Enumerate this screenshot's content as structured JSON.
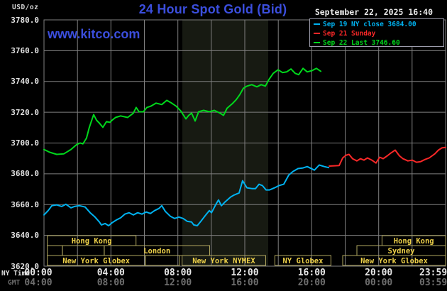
{
  "colors": {
    "background": "#000000",
    "title_blue": "#3b4edd",
    "grid": "#7f7f7f",
    "axis_text": "#e2e2e2",
    "gmt_text": "#6e6e6e",
    "session_border": "#b1a75f",
    "session_text": "#edd049",
    "nymex_band": "#171a12",
    "legend_border": "#9c9cac",
    "cyan": "#00b2f0",
    "red": "#fa2828",
    "green": "#00d81c"
  },
  "header": {
    "unit_label": "USD/oz",
    "title": "24 Hour Spot Gold (Bid)",
    "datetime": "September 22, 2025 16:40",
    "watermark": "www.kitco.com"
  },
  "legend": {
    "items": [
      {
        "marker": "-",
        "label": "Sep 19 NY close 3684.00",
        "color": "#00b2f0"
      },
      {
        "marker": "-",
        "label": "Sep 21 Sunday",
        "color": "#fa2828"
      },
      {
        "marker": "-",
        "label": "Sep 22 Last 3746.60",
        "color": "#00d81c"
      }
    ]
  },
  "axes": {
    "ny_time_label": "NY Time",
    "gmt_label": "GMT",
    "y_tick_labels": [
      "3780.0",
      "3760.0",
      "3740.0",
      "3720.0",
      "3700.0",
      "3680.0",
      "3660.0",
      "3640.0",
      "3620.0"
    ],
    "x_ticks": [
      {
        "h": 0,
        "ny": "00:00",
        "gmt": "04:00"
      },
      {
        "h": 4,
        "ny": "04:00",
        "gmt": "08:00"
      },
      {
        "h": 8,
        "ny": "08:00",
        "gmt": "12:00"
      },
      {
        "h": 12,
        "ny": "12:00",
        "gmt": "16:00"
      },
      {
        "h": 16,
        "ny": "16:00",
        "gmt": "20:00"
      },
      {
        "h": 20,
        "ny": "20:00",
        "gmt": "00:00"
      },
      {
        "h": 23.983,
        "ny": "23:59",
        "gmt": "03:59"
      }
    ]
  },
  "chart_data": {
    "type": "line",
    "title": "24 Hour Spot Gold (Bid)",
    "ylabel": "USD/oz",
    "ylim": [
      3620,
      3780
    ],
    "y_step": 20,
    "xlim_hours": [
      0,
      24
    ],
    "minor_grid_step_h": 2,
    "grid": true,
    "legend_position": "top-right",
    "nymex_band_h": [
      8.27,
      13.4
    ],
    "sessions": [
      {
        "row": 0,
        "start_h": 0.2,
        "end_h": 5.5,
        "label": "Hong Kong"
      },
      {
        "row": 0,
        "start_h": 20.2,
        "end_h": 24,
        "label": "Hong Kong"
      },
      {
        "row": 1,
        "start_h": 0.2,
        "end_h": 1.1,
        "label": ""
      },
      {
        "row": 1,
        "start_h": 1.1,
        "end_h": 3.6,
        "label": ""
      },
      {
        "row": 1,
        "start_h": 3.6,
        "end_h": 9.9,
        "label": "London"
      },
      {
        "row": 1,
        "start_h": 18.7,
        "end_h": 24,
        "label": "Sydney"
      },
      {
        "row": 2,
        "start_h": 0.2,
        "end_h": 6.05,
        "label": "New York Globex"
      },
      {
        "row": 2,
        "start_h": 6.05,
        "end_h": 8.1,
        "label": ""
      },
      {
        "row": 2,
        "start_h": 8.25,
        "end_h": 13.25,
        "label": "New York NYMEX"
      },
      {
        "row": 2,
        "start_h": 13.8,
        "end_h": 17.15,
        "label": "NY Globex"
      },
      {
        "row": 2,
        "start_h": 17.85,
        "end_h": 24,
        "label": "New York Globex"
      }
    ],
    "series": [
      {
        "name": "Sep 19 NY close",
        "close": 3684.0,
        "color": "#00b2f0",
        "points": [
          [
            0,
            3653.3
          ],
          [
            0.25,
            3656.1
          ],
          [
            0.47,
            3659.3
          ],
          [
            0.76,
            3659.8
          ],
          [
            1.06,
            3658.8
          ],
          [
            1.31,
            3660.2
          ],
          [
            1.61,
            3657.9
          ],
          [
            1.82,
            3658.8
          ],
          [
            2.12,
            3659.3
          ],
          [
            2.46,
            3658.4
          ],
          [
            2.76,
            3654.7
          ],
          [
            3.05,
            3651.9
          ],
          [
            3.31,
            3648.7
          ],
          [
            3.43,
            3646.8
          ],
          [
            3.65,
            3647.7
          ],
          [
            3.86,
            3646.3
          ],
          [
            4.07,
            3648.2
          ],
          [
            4.33,
            3650
          ],
          [
            4.58,
            3651.4
          ],
          [
            4.83,
            3653.8
          ],
          [
            5.09,
            3654.7
          ],
          [
            5.34,
            3653.3
          ],
          [
            5.6,
            3654.7
          ],
          [
            5.85,
            3653.8
          ],
          [
            6.11,
            3655.2
          ],
          [
            6.36,
            3654.2
          ],
          [
            6.61,
            3656.1
          ],
          [
            6.87,
            3657.5
          ],
          [
            7.04,
            3659.3
          ],
          [
            7.25,
            3655.6
          ],
          [
            7.55,
            3652.4
          ],
          [
            7.8,
            3651
          ],
          [
            8.06,
            3651.9
          ],
          [
            8.31,
            3651
          ],
          [
            8.57,
            3649.1
          ],
          [
            8.82,
            3648.7
          ],
          [
            8.95,
            3646.8
          ],
          [
            9.16,
            3646.3
          ],
          [
            9.37,
            3649.1
          ],
          [
            9.67,
            3653.3
          ],
          [
            9.88,
            3656.1
          ],
          [
            10.01,
            3654.7
          ],
          [
            10.3,
            3660.7
          ],
          [
            10.43,
            3663
          ],
          [
            10.6,
            3659.3
          ],
          [
            10.81,
            3661.6
          ],
          [
            11.15,
            3664.9
          ],
          [
            11.36,
            3666.2
          ],
          [
            11.66,
            3667.6
          ],
          [
            11.87,
            3675.5
          ],
          [
            12.13,
            3670.9
          ],
          [
            12.42,
            3670.4
          ],
          [
            12.64,
            3670.4
          ],
          [
            12.85,
            3673.2
          ],
          [
            13.06,
            3672.3
          ],
          [
            13.27,
            3669.5
          ],
          [
            13.48,
            3669.5
          ],
          [
            13.78,
            3670.9
          ],
          [
            14.03,
            3672.3
          ],
          [
            14.33,
            3673.2
          ],
          [
            14.63,
            3679.2
          ],
          [
            14.88,
            3681.5
          ],
          [
            15.18,
            3683.4
          ],
          [
            15.48,
            3683.8
          ],
          [
            15.73,
            3684.7
          ],
          [
            16.16,
            3682.4
          ],
          [
            16.45,
            3685.7
          ],
          [
            16.75,
            3684.7
          ],
          [
            17.01,
            3684
          ]
        ]
      },
      {
        "name": "Sep 21 Sunday",
        "color": "#fa2828",
        "points": [
          [
            17.05,
            3685
          ],
          [
            17.64,
            3685.4
          ],
          [
            17.85,
            3690.3
          ],
          [
            18.06,
            3692.1
          ],
          [
            18.23,
            3692.6
          ],
          [
            18.44,
            3689.8
          ],
          [
            18.7,
            3688.4
          ],
          [
            18.91,
            3689.8
          ],
          [
            19.12,
            3688.9
          ],
          [
            19.33,
            3690.3
          ],
          [
            19.59,
            3688.9
          ],
          [
            19.84,
            3687
          ],
          [
            20.06,
            3690.8
          ],
          [
            20.27,
            3689.8
          ],
          [
            20.52,
            3691.7
          ],
          [
            20.73,
            3693.5
          ],
          [
            20.99,
            3695.4
          ],
          [
            21.24,
            3691.7
          ],
          [
            21.45,
            3689.8
          ],
          [
            21.75,
            3688.4
          ],
          [
            22.01,
            3688.9
          ],
          [
            22.26,
            3687.5
          ],
          [
            22.51,
            3687.9
          ],
          [
            22.77,
            3689.3
          ],
          [
            23.02,
            3690.3
          ],
          [
            23.36,
            3693
          ],
          [
            23.57,
            3695.4
          ],
          [
            23.78,
            3696.8
          ],
          [
            24,
            3697.2
          ]
        ]
      },
      {
        "name": "Sep 22",
        "last": 3746.6,
        "color": "#00d81c",
        "points": [
          [
            0,
            3695.8
          ],
          [
            0.34,
            3694
          ],
          [
            0.76,
            3692.6
          ],
          [
            1.19,
            3693
          ],
          [
            1.61,
            3695.8
          ],
          [
            1.95,
            3699
          ],
          [
            2.16,
            3700
          ],
          [
            2.33,
            3699.5
          ],
          [
            2.54,
            3703.2
          ],
          [
            2.71,
            3710.2
          ],
          [
            2.97,
            3718.5
          ],
          [
            3.14,
            3714.8
          ],
          [
            3.31,
            3712.9
          ],
          [
            3.52,
            3710.2
          ],
          [
            3.73,
            3713.9
          ],
          [
            3.94,
            3713.4
          ],
          [
            4.07,
            3714.8
          ],
          [
            4.28,
            3716.6
          ],
          [
            4.58,
            3717.6
          ],
          [
            5,
            3716.6
          ],
          [
            5.34,
            3719.4
          ],
          [
            5.51,
            3723.1
          ],
          [
            5.68,
            3720.3
          ],
          [
            5.94,
            3720.3
          ],
          [
            6.15,
            3723.1
          ],
          [
            6.4,
            3724
          ],
          [
            6.7,
            3725.9
          ],
          [
            7.04,
            3725
          ],
          [
            7.34,
            3727.7
          ],
          [
            7.63,
            3725.9
          ],
          [
            7.89,
            3724
          ],
          [
            8.18,
            3720.8
          ],
          [
            8.48,
            3715.7
          ],
          [
            8.65,
            3718
          ],
          [
            8.82,
            3719.4
          ],
          [
            9.03,
            3714.3
          ],
          [
            9.24,
            3720.3
          ],
          [
            9.54,
            3721.2
          ],
          [
            9.88,
            3720.3
          ],
          [
            10.18,
            3721.2
          ],
          [
            10.52,
            3719.4
          ],
          [
            10.73,
            3718
          ],
          [
            10.94,
            3722.6
          ],
          [
            11.24,
            3725.4
          ],
          [
            11.49,
            3728.2
          ],
          [
            11.7,
            3731.4
          ],
          [
            11.92,
            3735.6
          ],
          [
            12.13,
            3737
          ],
          [
            12.42,
            3737.9
          ],
          [
            12.72,
            3736.5
          ],
          [
            12.98,
            3737.9
          ],
          [
            13.23,
            3737
          ],
          [
            13.44,
            3741.2
          ],
          [
            13.7,
            3745.3
          ],
          [
            13.99,
            3747.6
          ],
          [
            14.25,
            3745.8
          ],
          [
            14.5,
            3746.2
          ],
          [
            14.76,
            3748.1
          ],
          [
            15.01,
            3745.3
          ],
          [
            15.22,
            3744.4
          ],
          [
            15.48,
            3748.5
          ],
          [
            15.73,
            3746.2
          ],
          [
            16.03,
            3747.1
          ],
          [
            16.28,
            3748.5
          ],
          [
            16.54,
            3746.6
          ]
        ]
      }
    ]
  }
}
